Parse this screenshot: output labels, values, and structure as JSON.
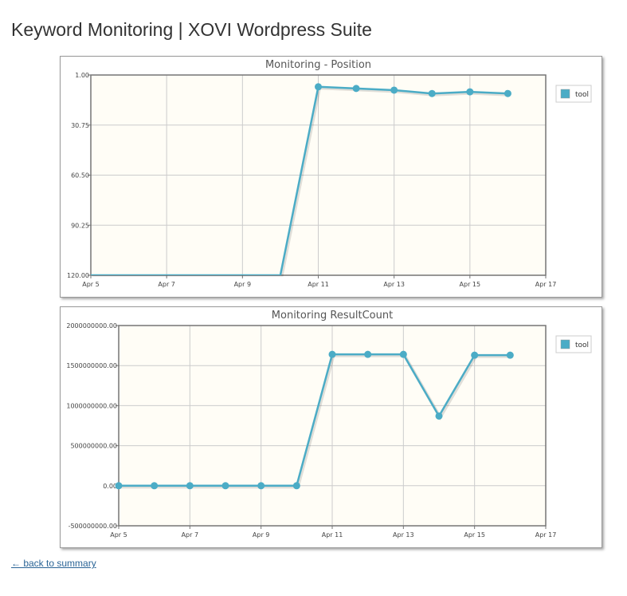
{
  "page": {
    "title": "Keyword Monitoring | XOVI Wordpress Suite",
    "back_link": "← back to summary"
  },
  "colors": {
    "series": "#4bacc6",
    "plot_bg": "#fffdf6",
    "grid": "#cccccc",
    "axis": "#757575"
  },
  "chart_data": [
    {
      "type": "line",
      "title": "Monitoring - Position",
      "x_labels": [
        "Apr 5",
        "Apr 7",
        "Apr 9",
        "Apr 11",
        "Apr 13",
        "Apr 15",
        "Apr 17"
      ],
      "x_ticks": [
        5,
        7,
        9,
        11,
        13,
        15,
        17
      ],
      "xlim": [
        5,
        17
      ],
      "y_ticks": [
        1,
        30.75,
        60.5,
        90.25,
        120
      ],
      "y_labels": [
        "1.00",
        "30.75",
        "60.50",
        "90.25",
        "120.00"
      ],
      "ylim": [
        1,
        120
      ],
      "y_inverted": true,
      "legend_position": "top-right",
      "series": [
        {
          "name": "tool",
          "x": [
            5,
            6,
            7,
            8,
            9,
            10,
            11,
            12,
            13,
            14,
            15,
            16
          ],
          "y": [
            120,
            120,
            120,
            120,
            120,
            120,
            8,
            9,
            10,
            12,
            11,
            12
          ],
          "marker_x": [
            11,
            12,
            13,
            14,
            15,
            16
          ]
        }
      ]
    },
    {
      "type": "line",
      "title": "Monitoring ResultCount",
      "x_labels": [
        "Apr 5",
        "Apr 7",
        "Apr 9",
        "Apr 11",
        "Apr 13",
        "Apr 15",
        "Apr 17"
      ],
      "x_ticks": [
        5,
        7,
        9,
        11,
        13,
        15,
        17
      ],
      "xlim": [
        5,
        17
      ],
      "y_ticks": [
        2000000000,
        1500000000,
        1000000000,
        500000000,
        0,
        -500000000
      ],
      "y_labels": [
        "2000000000.00",
        "1500000000.00",
        "1000000000.00",
        "500000000.00",
        "0.00",
        "-500000000.00"
      ],
      "ylim": [
        -500000000,
        2000000000
      ],
      "y_inverted": false,
      "legend_position": "top-right",
      "series": [
        {
          "name": "tool",
          "x": [
            5,
            6,
            7,
            8,
            9,
            10,
            11,
            12,
            13,
            14,
            15,
            16
          ],
          "y": [
            0,
            0,
            0,
            0,
            0,
            0,
            1640000000,
            1640000000,
            1640000000,
            870000000,
            1630000000,
            1630000000
          ],
          "marker_x": [
            5,
            6,
            7,
            8,
            9,
            10,
            11,
            12,
            13,
            14,
            15,
            16
          ]
        }
      ]
    }
  ]
}
